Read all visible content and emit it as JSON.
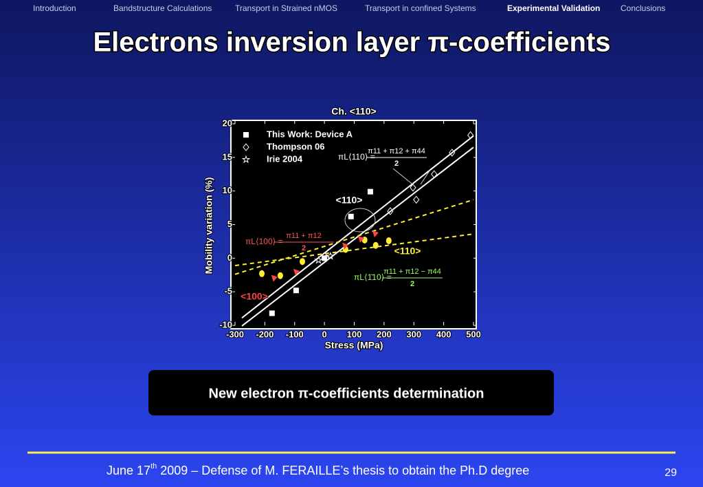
{
  "nav": {
    "items": [
      "Introduction",
      "Bandstructure Calculations",
      "Transport in Strained nMOS",
      "Transport in confined Systems",
      "Experimental Validation",
      "Conclusions"
    ],
    "active": 4
  },
  "title": "Electrons inversion layer π-coefficients",
  "chart_data": {
    "type": "scatter",
    "title": "Ch. <110>",
    "x_label": "Stress (MPa)",
    "y_label": "Mobility variation (%)",
    "xlim": [
      -300,
      500
    ],
    "ylim": [
      -10,
      20
    ],
    "xticks": [
      -300,
      -200,
      -100,
      0,
      100,
      200,
      300,
      400,
      500
    ],
    "yticks": [
      -10,
      -5,
      0,
      5,
      10,
      15,
      20
    ],
    "legend": "upper left",
    "series": [
      {
        "name": "This Work: Device A",
        "color": "#ffffff",
        "marker": "square",
        "x": [
          -176,
          -95,
          89,
          154,
          0
        ],
        "values": [
          -8.2,
          -4.8,
          6.2,
          9.9,
          0
        ]
      },
      {
        "name": "Thompson 06",
        "color": "#ffffff",
        "marker": "diamond",
        "x": [
          490,
          428,
          368,
          297,
          308,
          221,
          6
        ],
        "values": [
          18.3,
          15.7,
          12.5,
          10.5,
          8.7,
          7,
          0
        ]
      },
      {
        "name": "Irie 2004",
        "color": "#ffffff",
        "marker": "star",
        "x": [
          -20,
          20
        ],
        "values": [
          -0.3,
          0.3
        ]
      },
      {
        "color": "#ffee33",
        "marker": "circle",
        "x": [
          -210,
          -148,
          -74,
          71,
          135,
          172,
          216
        ],
        "values": [
          -2.3,
          -2.6,
          -0.5,
          1.3,
          2.7,
          1.9,
          2.6
        ]
      },
      {
        "color": "#ff4444",
        "marker": "triangle",
        "x": [
          -169,
          -95,
          69,
          122,
          170
        ],
        "values": [
          -3,
          -2.1,
          1.8,
          2.8,
          3.6
        ]
      }
    ],
    "fits": [
      {
        "color": "#ffffff",
        "dash": false,
        "x": [
          -277,
          500
        ],
        "values": [
          -8.9,
          18.2
        ]
      },
      {
        "color": "#ffffff",
        "dash": false,
        "x": [
          -277,
          500
        ],
        "values": [
          -10.1,
          16.5
        ]
      },
      {
        "color": "#ffee33",
        "dash": true,
        "x": [
          -300,
          500
        ],
        "values": [
          -2.4,
          8.7
        ]
      },
      {
        "color": "#ffee33",
        "dash": true,
        "x": [
          -300,
          500
        ],
        "values": [
          -1.1,
          3.6
        ]
      }
    ],
    "annotations": [
      {
        "text": "<110>",
        "color": "#ffffff"
      },
      {
        "text": "<110>",
        "color": "#ffee33"
      },
      {
        "text": "<100>",
        "color": "#ff4444"
      }
    ],
    "formulas": [
      {
        "lhs": "πL⟨110⟩ =",
        "num": "π11 + π12 + π44",
        "den": "2",
        "color": "#ffffff"
      },
      {
        "lhs": "πL⟨100⟩ =",
        "num": "π11 + π12",
        "den": "2",
        "color": "#ff5555"
      },
      {
        "lhs": "πL⟨1̄10⟩ =",
        "num": "π11 + π12 − π44",
        "den": "2",
        "color": "#99ff66"
      }
    ]
  },
  "callout": "New electron π-coefficients determination",
  "footer": {
    "date": "June 17",
    "sup": "th",
    "text": " 2009 – Defense of M. FERAILLE’s thesis to obtain the Ph.D degree"
  },
  "page_number": "29"
}
